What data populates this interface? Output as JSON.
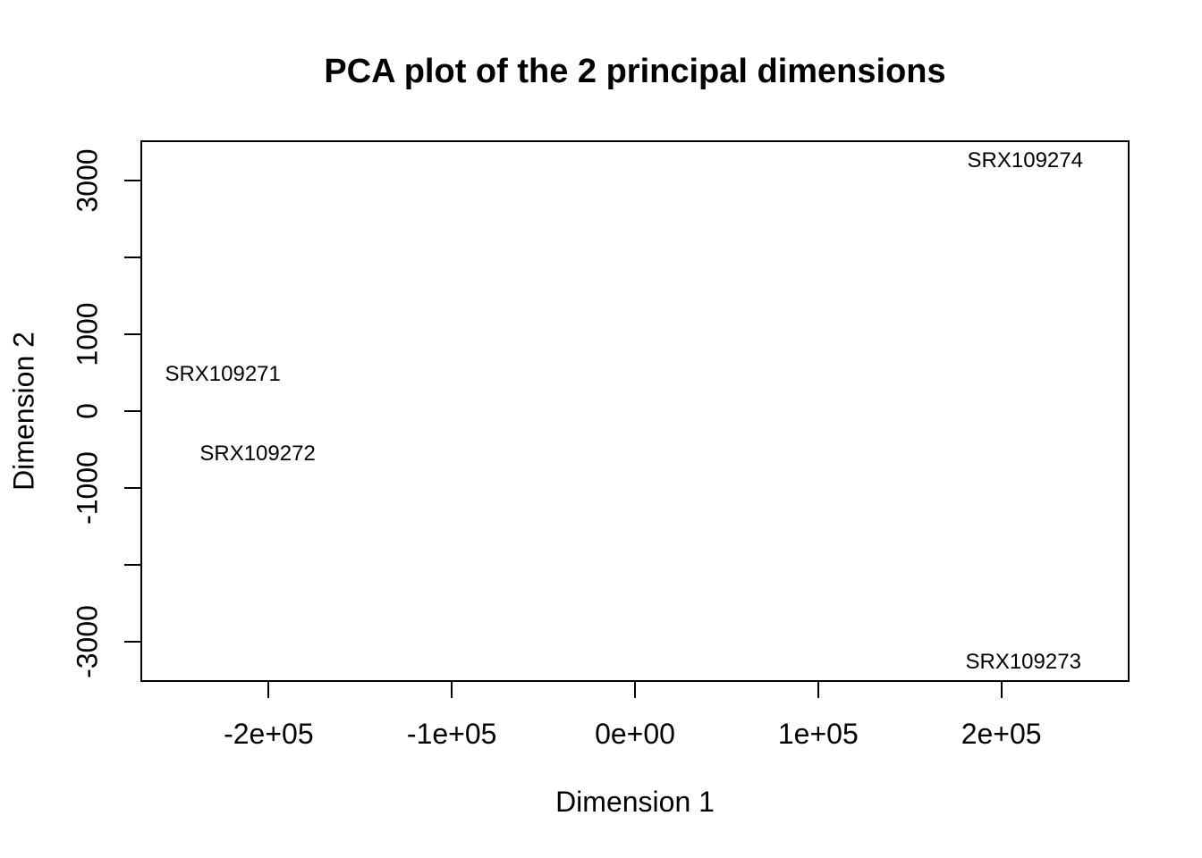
{
  "figure": {
    "background_color": "#ffffff",
    "foreground_color": "#000000"
  },
  "chart_data": {
    "type": "scatter",
    "title": "PCA plot of the 2 principal dimensions",
    "xlabel": "Dimension 1",
    "ylabel": "Dimension 2",
    "xlim": [
      -270000,
      270000
    ],
    "ylim": [
      -3520,
      3520
    ],
    "grid": false,
    "legend": "none",
    "marker": "text-label-only",
    "x_ticks": [
      {
        "value": -200000,
        "label": "-2e+05"
      },
      {
        "value": -100000,
        "label": "-1e+05"
      },
      {
        "value": 0,
        "label": "0e+00"
      },
      {
        "value": 100000,
        "label": "1e+05"
      },
      {
        "value": 200000,
        "label": "2e+05"
      }
    ],
    "y_ticks": [
      {
        "value": 3000,
        "label": "3000"
      },
      {
        "value": 2000,
        "label": ""
      },
      {
        "value": 1000,
        "label": "1000"
      },
      {
        "value": 0,
        "label": "0"
      },
      {
        "value": -1000,
        "label": "-1000"
      },
      {
        "value": -2000,
        "label": ""
      },
      {
        "value": -3000,
        "label": "-3000"
      }
    ],
    "points": [
      {
        "label": "SRX109271",
        "x": -225000,
        "y": 480
      },
      {
        "label": "SRX109272",
        "x": -206000,
        "y": -560
      },
      {
        "label": "SRX109273",
        "x": 212000,
        "y": -3270
      },
      {
        "label": "SRX109274",
        "x": 213000,
        "y": 3250
      }
    ]
  }
}
